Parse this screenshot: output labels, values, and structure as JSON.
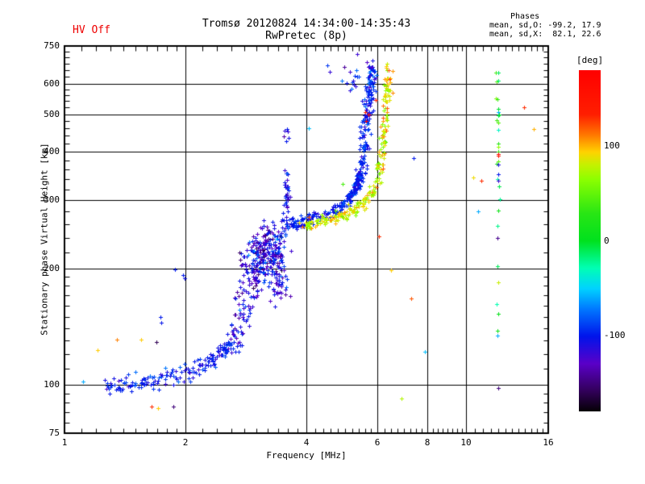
{
  "header": {
    "hv_status": "HV Off",
    "title": "Tromsø 20120824 14:34:00-14:35:43",
    "subtitle": "RwPretec (8p)",
    "phases_title": "Phases",
    "phases_o": "mean, sd,O: -99.2, 17.9",
    "phases_x": "mean, sd,X:  82.1, 22.6"
  },
  "colors": {
    "hv_text": "#ee0000",
    "axis": "#000000",
    "background": "#ffffff"
  },
  "chart_data": {
    "type": "scatter",
    "title": "Tromsø 20120824 14:34:00-14:35:43",
    "subtitle": "RwPretec (8p)",
    "xlabel": "Frequency [MHz]",
    "ylabel": "Stationary phase Virtual Height [km]",
    "xscale": "log",
    "yscale": "log",
    "xlim": [
      1,
      16
    ],
    "ylim": [
      75,
      750
    ],
    "grid": true,
    "xticks_major": [
      1,
      2,
      4,
      6,
      8,
      10,
      16
    ],
    "xticks_minor": [
      1.1,
      1.2,
      1.3,
      1.4,
      1.5,
      1.6,
      1.7,
      1.8,
      1.9,
      2.2,
      2.4,
      2.6,
      2.8,
      3.0,
      3.2,
      3.4,
      3.6,
      3.8,
      4.2,
      4.4,
      4.6,
      4.8,
      5.0,
      5.2,
      5.4,
      5.6,
      5.8,
      6.25,
      6.5,
      6.75,
      7.0,
      7.25,
      7.5,
      7.75,
      8.25,
      8.5,
      8.75,
      9.0,
      9.25,
      9.5,
      9.75,
      10.5,
      11,
      11.5,
      12,
      12.5,
      13,
      13.5,
      14,
      14.5,
      15,
      15.5
    ],
    "yticks_major": [
      75,
      100,
      200,
      300,
      400,
      500,
      600,
      750
    ],
    "yticks_minor": [
      80,
      85,
      90,
      95,
      110,
      120,
      130,
      140,
      150,
      160,
      170,
      180,
      190,
      220,
      240,
      260,
      280,
      320,
      340,
      360,
      380,
      420,
      440,
      460,
      480,
      520,
      540,
      560,
      580,
      625,
      650,
      675,
      700,
      725
    ],
    "x_gridlines": [
      2,
      4,
      6,
      8,
      10
    ],
    "y_gridlines": [
      100,
      200,
      300,
      400,
      500,
      600
    ],
    "colorbar": {
      "label": "[deg]",
      "min": -180,
      "max": 180,
      "ticks": [
        100,
        0,
        -100
      ],
      "stops": [
        [
          0.0,
          "#ff0000"
        ],
        [
          0.13,
          "#ff1e00"
        ],
        [
          0.19,
          "#ff7800"
        ],
        [
          0.24,
          "#ffd200"
        ],
        [
          0.275,
          "#c8f000"
        ],
        [
          0.32,
          "#8cff00"
        ],
        [
          0.42,
          "#28e614"
        ],
        [
          0.5,
          "#00e11e"
        ],
        [
          0.58,
          "#00ffb4"
        ],
        [
          0.64,
          "#00d2ff"
        ],
        [
          0.7,
          "#0078ff"
        ],
        [
          0.78,
          "#0014eb"
        ],
        [
          0.86,
          "#5a00c8"
        ],
        [
          0.94,
          "#32005a"
        ],
        [
          1.0,
          "#050005"
        ]
      ]
    },
    "stats": {
      "o_mode": {
        "mean_phase_deg": -99.2,
        "sd_deg": 17.9
      },
      "x_mode": {
        "mean_phase_deg": 82.1,
        "sd_deg": 22.6
      }
    },
    "traces": [
      {
        "name": "e-layer",
        "polyline": [
          [
            1.26,
            100
          ],
          [
            1.5,
            101
          ],
          [
            1.7,
            103
          ],
          [
            1.95,
            106
          ],
          [
            2.2,
            111
          ],
          [
            2.45,
            119
          ],
          [
            2.6,
            127
          ]
        ],
        "n": 170,
        "fj": 0.004,
        "hj": 0.012,
        "phase": -100,
        "phase_sd": 10
      },
      {
        "name": "ef-rise",
        "polyline": [
          [
            2.55,
            124
          ],
          [
            2.7,
            138
          ],
          [
            2.82,
            155
          ],
          [
            2.92,
            172
          ],
          [
            3.0,
            190
          ]
        ],
        "n": 55,
        "fj": 0.008,
        "hj": 0.03,
        "phase": -105,
        "phase_sd": 14
      },
      {
        "name": "descending-streak",
        "polyline": [
          [
            2.62,
            132
          ],
          [
            2.7,
            160
          ],
          [
            2.75,
            195
          ],
          [
            2.78,
            222
          ]
        ],
        "n": 30,
        "fj": 0.006,
        "hj": 0.025,
        "phase": -115,
        "phase_sd": 16
      },
      {
        "name": "f1-blob",
        "polyline": [
          [
            2.95,
            200
          ],
          [
            3.1,
            215
          ],
          [
            3.25,
            225
          ],
          [
            3.35,
            230
          ]
        ],
        "n": 240,
        "fj": 0.018,
        "hj": 0.035,
        "phase": -118,
        "phase_sd": 20
      },
      {
        "name": "blob-fringe",
        "polyline": [
          [
            3.35,
            178
          ],
          [
            3.5,
            192
          ]
        ],
        "n": 45,
        "fj": 0.01,
        "hj": 0.03,
        "phase": -112,
        "phase_sd": 16
      },
      {
        "name": "cusp-spike",
        "polyline": [
          [
            3.54,
            240
          ],
          [
            3.56,
            290
          ],
          [
            3.58,
            345
          ]
        ],
        "n": 40,
        "fj": 0.004,
        "hj": 0.02,
        "phase": -108,
        "phase_sd": 14
      },
      {
        "name": "cusp-top",
        "polyline": [
          [
            3.55,
            425
          ],
          [
            3.58,
            458
          ]
        ],
        "n": 6,
        "fj": 0.004,
        "hj": 0.015,
        "phase": -110,
        "phase_sd": 12
      },
      {
        "name": "f-trace-o",
        "polyline": [
          [
            3.58,
            258
          ],
          [
            3.9,
            265
          ],
          [
            4.2,
            270
          ],
          [
            4.6,
            277
          ],
          [
            4.9,
            289
          ],
          [
            5.15,
            304
          ],
          [
            5.35,
            328
          ],
          [
            5.45,
            355
          ]
        ],
        "n": 240,
        "fj": 0.005,
        "hj": 0.008,
        "phase": -99,
        "phase_sd": 9
      },
      {
        "name": "f-steep-o",
        "polyline": [
          [
            5.45,
            345
          ],
          [
            5.55,
            395
          ],
          [
            5.62,
            455
          ],
          [
            5.68,
            515
          ],
          [
            5.73,
            570
          ],
          [
            5.78,
            618
          ],
          [
            5.82,
            648
          ]
        ],
        "n": 160,
        "fj": 0.006,
        "hj": 0.02,
        "phase": -100,
        "phase_sd": 12
      },
      {
        "name": "f-top-cloud",
        "polyline": [
          [
            4.7,
            642
          ],
          [
            5.1,
            626
          ],
          [
            5.4,
            608
          ]
        ],
        "n": 18,
        "fj": 0.02,
        "hj": 0.025,
        "phase": -108,
        "phase_sd": 18
      },
      {
        "name": "x-trace",
        "polyline": [
          [
            3.95,
            257
          ],
          [
            4.3,
            263
          ],
          [
            4.7,
            270
          ],
          [
            5.1,
            279
          ],
          [
            5.45,
            291
          ],
          [
            5.7,
            304
          ],
          [
            5.9,
            319
          ]
        ],
        "n": 130,
        "fj": 0.005,
        "hj": 0.008,
        "phase": 82,
        "phase_sd": 12
      },
      {
        "name": "x-steep",
        "polyline": [
          [
            5.9,
            319
          ],
          [
            6.05,
            350
          ],
          [
            6.15,
            390
          ],
          [
            6.22,
            440
          ],
          [
            6.28,
            495
          ],
          [
            6.33,
            550
          ],
          [
            6.37,
            600
          ],
          [
            6.4,
            638
          ]
        ],
        "n": 110,
        "fj": 0.005,
        "hj": 0.018,
        "phase": 82,
        "phase_sd": 18
      },
      {
        "name": "interference-column-top",
        "polyline": [
          [
            11.97,
            470
          ],
          [
            11.99,
            660
          ]
        ],
        "n": 15,
        "fj": 0.002,
        "hj": 0.02,
        "phase": 25,
        "phase_sd": 30
      },
      {
        "name": "interference-column-mid",
        "polyline": [
          [
            11.97,
            240
          ],
          [
            11.99,
            430
          ]
        ],
        "n": 10,
        "fj": 0.002,
        "hj": 0.02,
        "phase": 15,
        "phase_sd": 35
      },
      {
        "name": "interference-column-low",
        "polyline": [
          [
            11.97,
            130
          ],
          [
            11.99,
            220
          ]
        ],
        "n": 6,
        "fj": 0.002,
        "hj": 0.02,
        "phase": 20,
        "phase_sd": 35
      }
    ],
    "outliers": [
      [
        1.11,
        102,
        -60
      ],
      [
        1.21,
        123,
        95
      ],
      [
        1.35,
        131,
        110
      ],
      [
        1.55,
        131,
        95
      ],
      [
        1.69,
        129,
        -160
      ],
      [
        1.65,
        88,
        130
      ],
      [
        1.71,
        87,
        95
      ],
      [
        1.87,
        88,
        -150
      ],
      [
        1.88,
        199,
        -100
      ],
      [
        1.97,
        192,
        -100
      ],
      [
        1.99,
        188,
        -105
      ],
      [
        1.73,
        150,
        -100
      ],
      [
        1.74,
        145,
        -102
      ],
      [
        4.05,
        459,
        -55
      ],
      [
        5.35,
        715,
        -120
      ],
      [
        4.92,
        330,
        40
      ],
      [
        5.6,
        505,
        130
      ],
      [
        5.62,
        480,
        160
      ],
      [
        5.95,
        545,
        140
      ],
      [
        5.72,
        500,
        155
      ],
      [
        6.06,
        242,
        130
      ],
      [
        6.5,
        198,
        95
      ],
      [
        7.3,
        167,
        120
      ],
      [
        7.9,
        122,
        -55
      ],
      [
        6.9,
        92,
        75
      ],
      [
        7.4,
        385,
        -100
      ],
      [
        10.4,
        343,
        90
      ],
      [
        10.9,
        336,
        130
      ],
      [
        10.7,
        281,
        -60
      ],
      [
        13.9,
        520,
        130
      ],
      [
        14.7,
        458,
        100
      ],
      [
        12.0,
        394,
        165
      ],
      [
        12.02,
        390,
        150
      ],
      [
        12.0,
        371,
        -110
      ],
      [
        12.01,
        350,
        -100
      ],
      [
        11.99,
        337,
        -120
      ],
      [
        11.98,
        239,
        -145
      ],
      [
        12.0,
        98,
        -150
      ]
    ]
  }
}
